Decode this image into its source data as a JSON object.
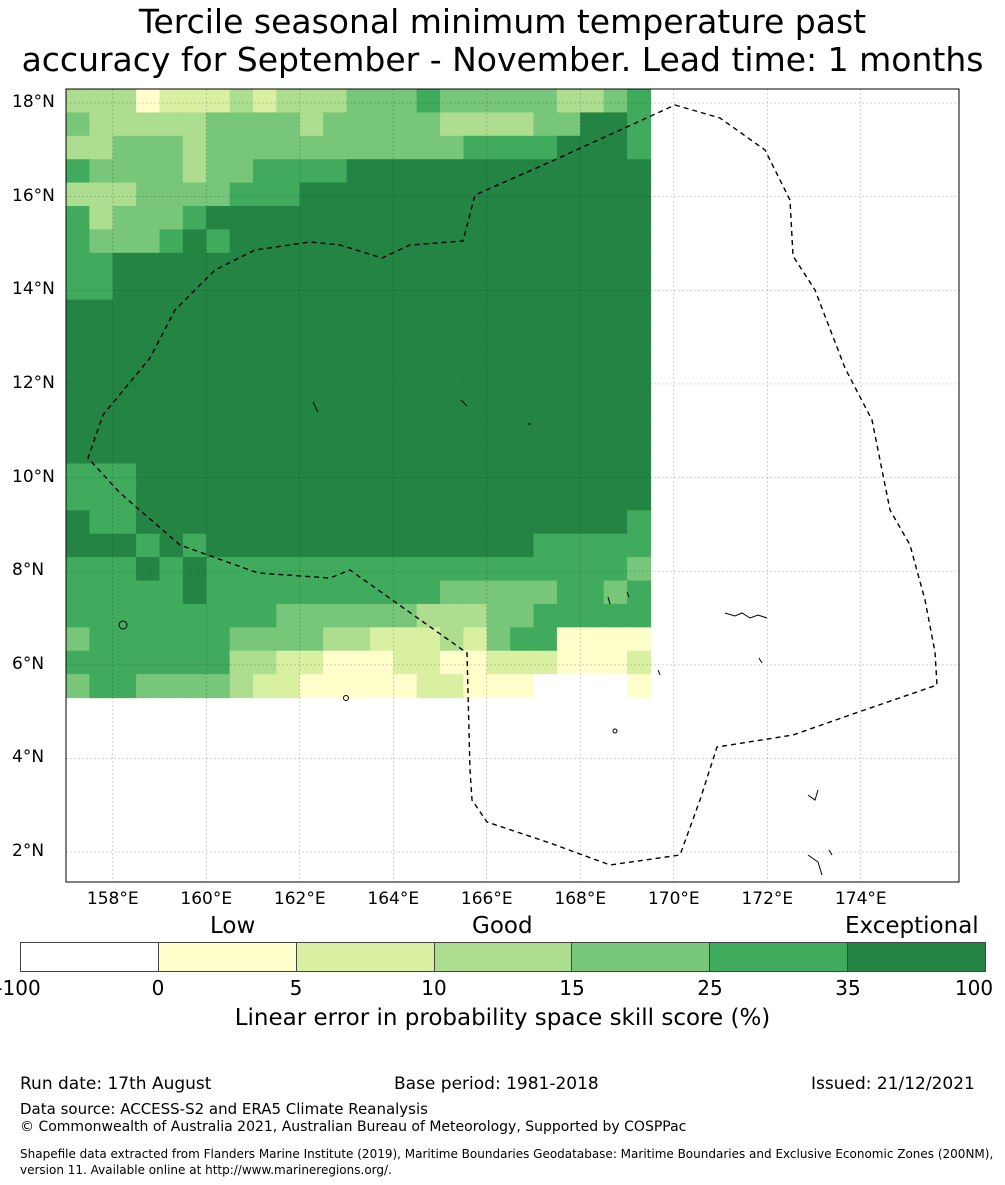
{
  "title_line1": "Tercile seasonal minimum temperature past",
  "title_line2": "accuracy for September - November. Lead time: 1 months",
  "lat_labels": [
    "18°N",
    "16°N",
    "14°N",
    "12°N",
    "10°N",
    "8°N",
    "6°N",
    "4°N",
    "2°N"
  ],
  "lon_labels": [
    "158°E",
    "160°E",
    "162°E",
    "164°E",
    "166°E",
    "168°E",
    "170°E",
    "172°E",
    "174°E"
  ],
  "legend": {
    "categories": {
      "low": "Low",
      "good": "Good",
      "exceptional": "Exceptional"
    },
    "ticks": [
      "-100",
      "0",
      "5",
      "10",
      "15",
      "25",
      "35",
      "100"
    ],
    "colors": [
      "#ffffff",
      "#ffffcc",
      "#d9f0a3",
      "#addd8e",
      "#78c679",
      "#41ab5d",
      "#238443"
    ],
    "label": "Linear error in probability space skill score (%)"
  },
  "footer": {
    "run_date": "Run date: 17th August",
    "base_period": "Base period: 1981-2018",
    "issued": "Issued: 21/12/2021",
    "data_source": "Data source: ACCESS-S2 and ERA5 Climate Reanalysis",
    "copyright": "© Commonwealth of Australia 2021, Australian Bureau of Meteorology, Supported by COSPPac",
    "shapefile_line1": "Shapefile data extracted from Flanders Marine Institute (2019), Maritime Boundaries Geodatabase: Maritime Boundaries and Exclusive Economic Zones (200NM),",
    "shapefile_line2": "version 11. Available online at http://www.marineregions.org/."
  },
  "map_grid": {
    "lon_start": 157,
    "lat_top": 18.3,
    "cell_deg": 0.5,
    "rows": [
      "3331222323334445444443345",
      "4333334444344444333344665",
      "3344434444444444455556665",
      "5444434455556666666666666",
      "3334444555666666666666666",
      "5344456666666666666666666",
      "5444565666666666666666666",
      "5566666666666666666666666",
      "5566666666666666666666666",
      "6666666666666666666666666",
      "6666666666666666666666666",
      "6666666666666666666666666",
      "6666666666666666666666666",
      "6666666666666666666666666",
      "6666666666666666666666666",
      "6666666666666666666666666",
      "5556666666666666666666666",
      "5556666666666666666666666",
      "6556666666666666666666665",
      "6665656666666666666655555",
      "5556565555555555555555554",
      "5555565555555555444445545",
      "5555555554444443334455555",
      "4555555444433222324551111",
      "5555555332211122112221112",
      "4554444322111112211100001"
    ]
  }
}
